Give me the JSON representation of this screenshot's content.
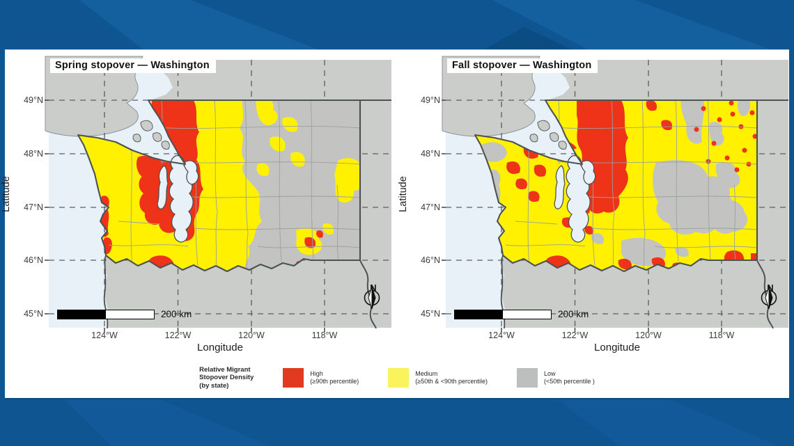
{
  "frame": {
    "base_blue": "#0E5591",
    "light_blue": "#14609f",
    "dark_blue": "#0b4d82"
  },
  "maps": [
    {
      "id": "spring",
      "title": "Spring stopover — Washington"
    },
    {
      "id": "fall",
      "title": "Fall stopover — Washington"
    }
  ],
  "axes": {
    "x_label": "Longitude",
    "y_label": "Latitude",
    "lon_ticks": [
      "124°W",
      "122°W",
      "120°W",
      "118°W"
    ],
    "lat_ticks": [
      "49°N",
      "48°N",
      "47°N",
      "46°N",
      "45°N"
    ]
  },
  "scalebar": {
    "label": "200 km"
  },
  "north_arrow": {
    "label": "N"
  },
  "legend": {
    "title_lines": [
      "Relative Migrant",
      "Stopover Density",
      "(by state)"
    ],
    "items": [
      {
        "name": "High",
        "detail": "(≥90th percentile)",
        "color": "#E23A20"
      },
      {
        "name": "Medium",
        "detail": "(≥50th & <90th percentile)",
        "color": "#FBF35C"
      },
      {
        "name": "Low",
        "detail": "(<50th percentile )",
        "color": "#BDBFBE"
      }
    ]
  },
  "colors": {
    "water": "#E8F0F8",
    "land_outside": "#CBCDCA",
    "state_low": "#C3C4C1",
    "medium": "#FFF100",
    "high": "#EE3318",
    "county_line": "#9BA1A0",
    "state_border": "#4C5254",
    "graticule": "#4F4F4F",
    "tick": "#444444"
  }
}
